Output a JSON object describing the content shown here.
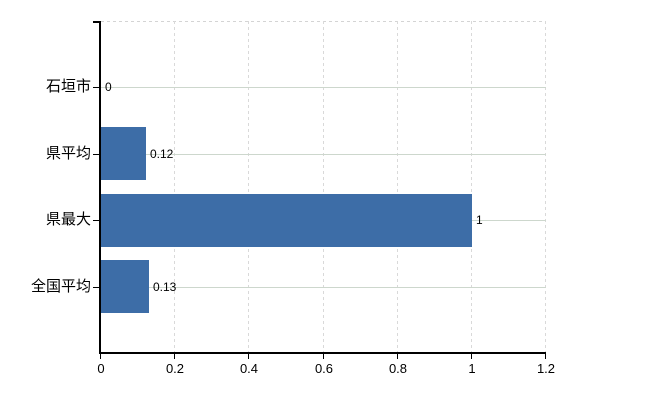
{
  "chart_data": {
    "type": "bar",
    "orientation": "horizontal",
    "title": "",
    "xlabel": "",
    "ylabel": "",
    "categories": [
      "石垣市",
      "県平均",
      "県最大",
      "全国平均"
    ],
    "values": [
      0,
      0.12,
      1,
      0.13
    ],
    "value_labels": [
      "0",
      "0.12",
      "1",
      "0.13"
    ],
    "xlim": [
      0,
      1.2
    ],
    "x_ticks": [
      0,
      0.2,
      0.4,
      0.6,
      0.8,
      1,
      1.2
    ],
    "x_tick_labels": [
      "0",
      "0.2",
      "0.4",
      "0.6",
      "0.8",
      "1",
      "1.2"
    ],
    "grid": true,
    "legend": false,
    "colors": {
      "bar": "#3d6da7",
      "grid_horizontal": "#cdd7cd",
      "grid_vertical": "#d9d9d9",
      "plot_border_dashed": "#d4d4d4",
      "axis": "#000000",
      "text": "#000000",
      "background": "#ffffff"
    }
  }
}
